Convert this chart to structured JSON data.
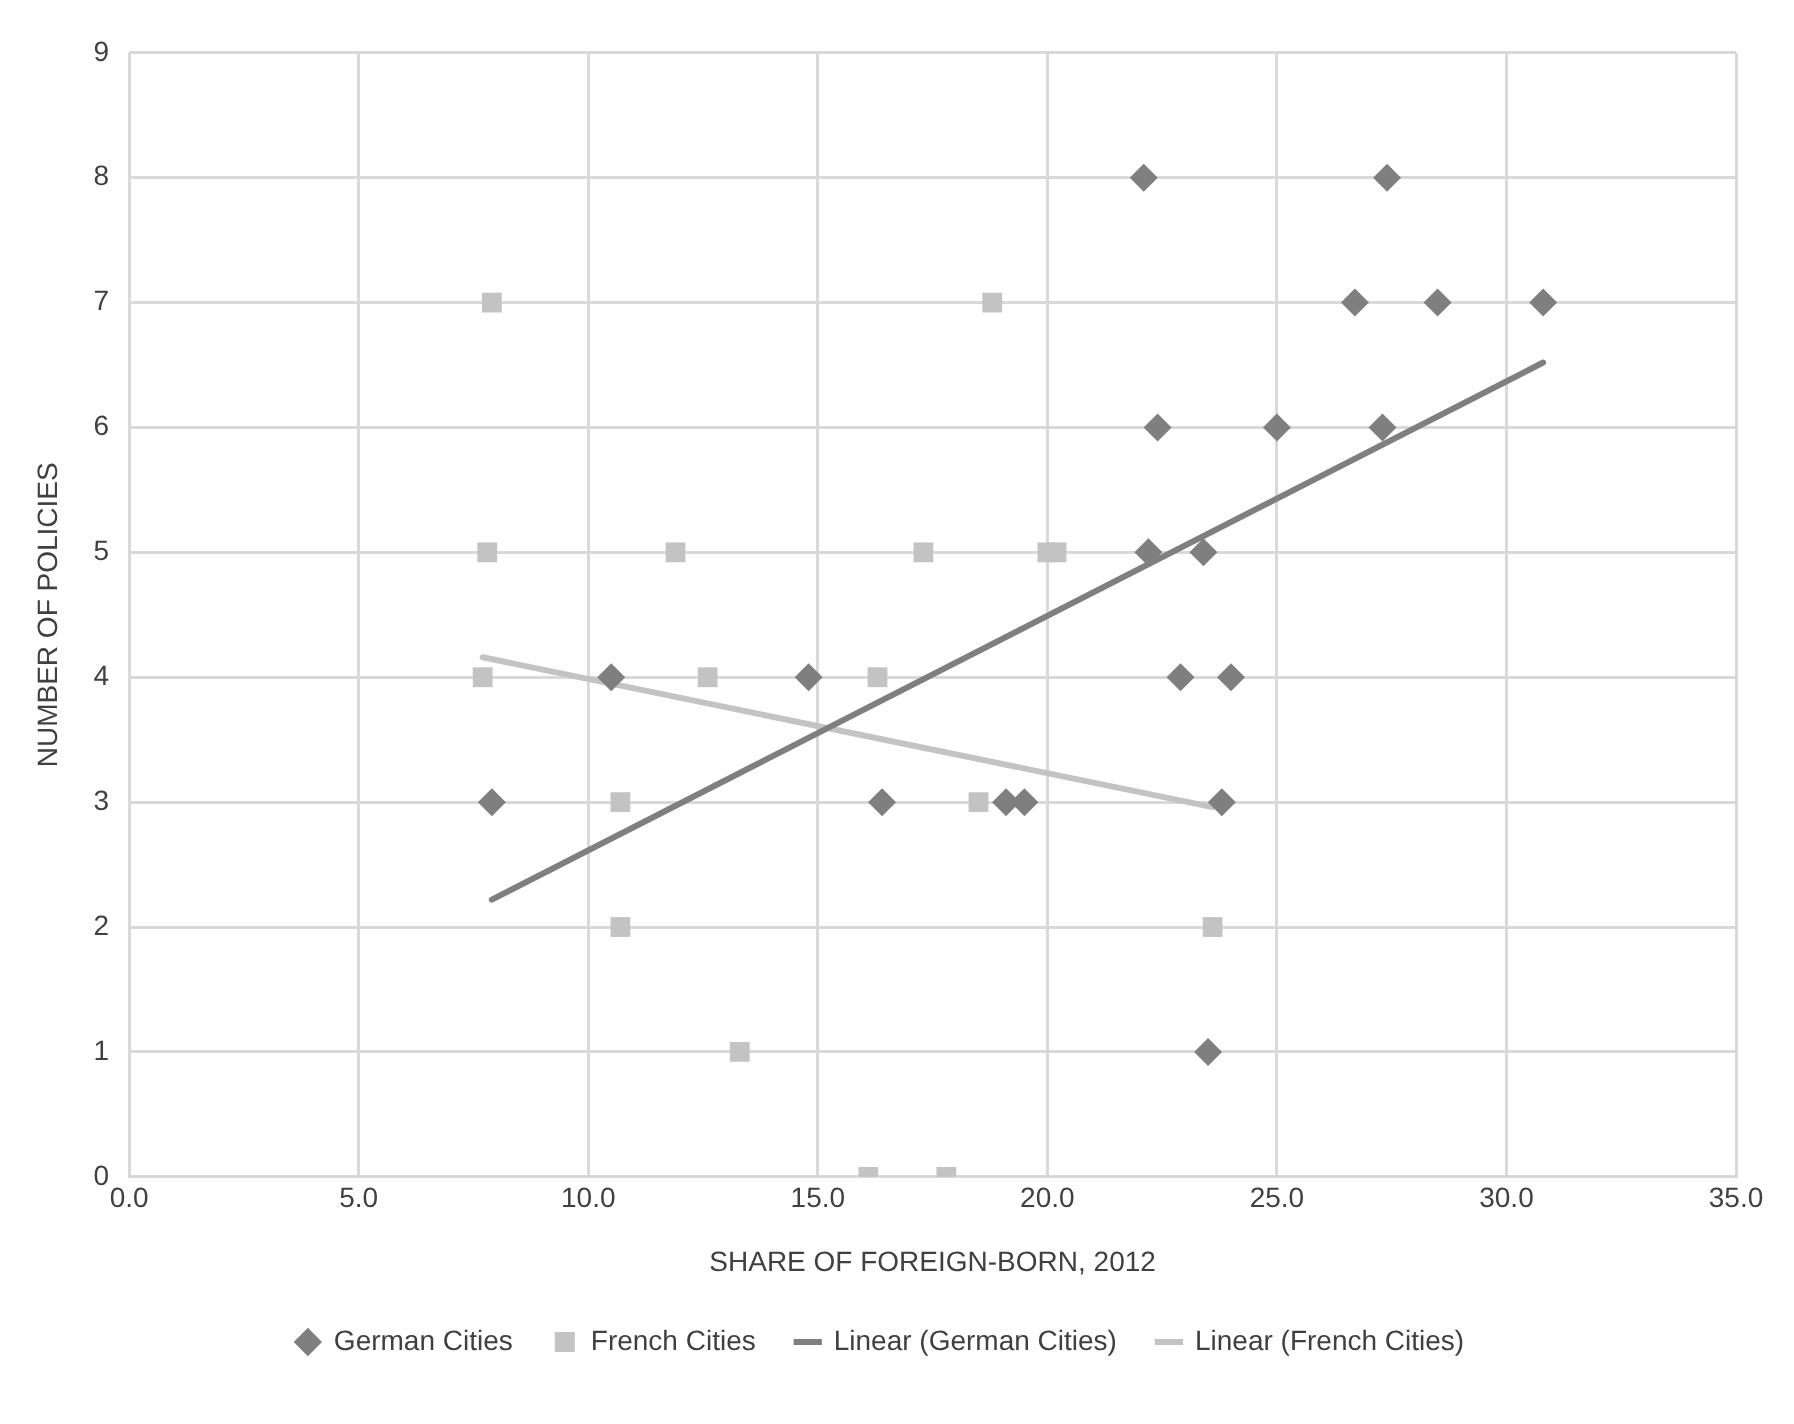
{
  "chart_data": {
    "type": "scatter",
    "xlabel": "SHARE OF FOREIGN-BORN, 2012",
    "ylabel": "NUMBER OF POLICIES",
    "xlim": [
      0,
      35
    ],
    "xticks": [
      {
        "value": 0,
        "label": "0.0"
      },
      {
        "value": 5,
        "label": "5.0"
      },
      {
        "value": 10,
        "label": "10.0"
      },
      {
        "value": 15,
        "label": "15.0"
      },
      {
        "value": 20,
        "label": "20.0"
      },
      {
        "value": 25,
        "label": "25.0"
      },
      {
        "value": 30,
        "label": "30.0"
      },
      {
        "value": 35,
        "label": "35.0"
      }
    ],
    "ylim": [
      0,
      9
    ],
    "yticks": [
      0,
      1,
      2,
      3,
      4,
      5,
      6,
      7,
      8,
      9
    ],
    "grid": true,
    "legend": "bottom",
    "series": [
      {
        "name": "German Cities",
        "type": "scatter",
        "marker": "diamond",
        "color": "#7f7f7f",
        "x": [
          7.9,
          10.5,
          14.8,
          16.4,
          19.1,
          19.5,
          22.1,
          27.4,
          26.7,
          28.5,
          30.8,
          22.4,
          25.0,
          27.3,
          22.2,
          23.4,
          22.9,
          24.0,
          23.8,
          23.5
        ],
        "values": [
          3,
          4,
          4,
          3,
          3,
          3,
          8,
          8,
          7,
          7,
          7,
          6,
          6,
          6,
          5,
          5,
          4,
          4,
          3,
          1
        ]
      },
      {
        "name": "French Cities",
        "type": "scatter",
        "marker": "square",
        "color": "#c3c3c3",
        "x": [
          7.9,
          18.8,
          7.8,
          11.9,
          17.3,
          20.0,
          20.2,
          7.7,
          12.6,
          16.3,
          10.7,
          18.5,
          10.7,
          23.6,
          13.3,
          16.1,
          17.8
        ],
        "values": [
          7,
          7,
          5,
          5,
          5,
          5,
          5,
          4,
          4,
          4,
          3,
          3,
          2,
          2,
          1,
          0,
          0
        ]
      },
      {
        "name": "Linear (German Cities)",
        "type": "line",
        "marker": "none",
        "color": "#7f7f7f",
        "x": [
          7.9,
          30.8
        ],
        "values": [
          2.22,
          6.52
        ]
      },
      {
        "name": "Linear (French Cities)",
        "type": "line",
        "marker": "none",
        "color": "#c3c3c3",
        "x": [
          7.7,
          23.6
        ],
        "values": [
          4.16,
          2.96
        ]
      }
    ]
  }
}
